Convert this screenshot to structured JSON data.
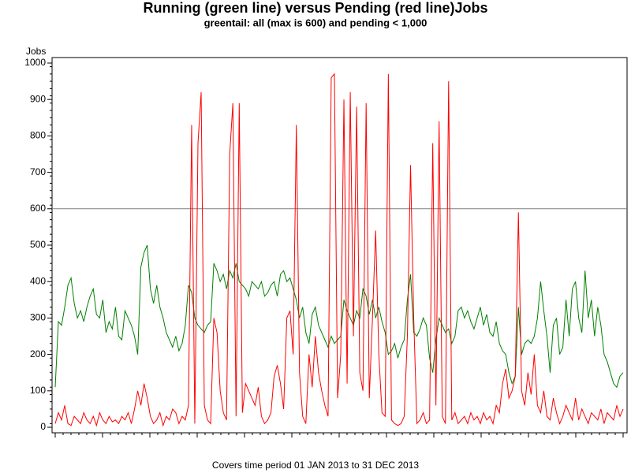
{
  "chart_data": {
    "type": "line",
    "title": "Running (green line) versus Pending (red line)Jobs",
    "subtitle": "greentail: all (max is 600) and pending < 1,000",
    "y_label": "Jobs",
    "footnote": "Covers time period 01 JAN 2013 to 31 DEC 2013",
    "ylim": [
      0,
      1000
    ],
    "yticks": [
      0,
      100,
      200,
      300,
      400,
      500,
      600,
      700,
      800,
      900,
      1000
    ],
    "reference_line": 600,
    "series": [
      {
        "color": "#008000",
        "values": [
          110,
          290,
          280,
          330,
          390,
          410,
          340,
          300,
          320,
          290,
          330,
          360,
          380,
          310,
          300,
          350,
          260,
          290,
          270,
          330,
          250,
          240,
          320,
          300,
          280,
          250,
          200,
          440,
          480,
          500,
          380,
          340,
          390,
          330,
          300,
          260,
          240,
          220,
          250,
          210,
          230,
          280,
          390,
          370,
          300,
          280,
          270,
          260,
          280,
          290,
          450,
          430,
          400,
          420,
          380,
          430,
          410,
          450,
          400,
          390,
          380,
          360,
          400,
          390,
          380,
          400,
          360,
          370,
          390,
          400,
          360,
          420,
          430,
          400,
          410,
          380,
          350,
          300,
          330,
          260,
          230,
          310,
          330,
          280,
          260,
          240,
          220,
          250,
          230,
          240,
          250,
          350,
          320,
          300,
          280,
          320,
          300,
          380,
          360,
          310,
          350,
          300,
          330,
          290,
          260,
          200,
          210,
          230,
          190,
          220,
          240,
          350,
          420,
          260,
          250,
          270,
          300,
          280,
          190,
          150,
          240,
          300,
          280,
          260,
          270,
          230,
          250,
          320,
          330,
          300,
          320,
          290,
          270,
          300,
          330,
          280,
          310,
          260,
          250,
          290,
          230,
          210,
          200,
          150,
          120,
          140,
          330,
          200,
          230,
          240,
          230,
          250,
          300,
          400,
          320,
          250,
          150,
          280,
          300,
          200,
          220,
          350,
          250,
          380,
          400,
          300,
          260,
          430,
          300,
          350,
          250,
          330,
          280,
          200,
          180,
          150,
          120,
          110,
          140,
          150
        ]
      },
      {
        "color": "#ff0000",
        "values": [
          10,
          40,
          20,
          60,
          10,
          5,
          30,
          20,
          10,
          40,
          20,
          10,
          30,
          5,
          40,
          20,
          10,
          30,
          15,
          20,
          10,
          30,
          20,
          40,
          10,
          50,
          100,
          60,
          120,
          80,
          30,
          10,
          20,
          40,
          5,
          30,
          20,
          50,
          40,
          10,
          30,
          20,
          60,
          830,
          10,
          780,
          920,
          60,
          20,
          10,
          300,
          260,
          100,
          40,
          20,
          750,
          890,
          30,
          890,
          40,
          120,
          100,
          80,
          60,
          110,
          30,
          10,
          20,
          40,
          140,
          170,
          120,
          50,
          300,
          320,
          200,
          830,
          150,
          30,
          10,
          200,
          110,
          250,
          150,
          100,
          60,
          30,
          960,
          970,
          80,
          200,
          900,
          120,
          920,
          250,
          880,
          150,
          100,
          890,
          80,
          300,
          540,
          200,
          40,
          30,
          970,
          20,
          10,
          5,
          10,
          30,
          250,
          720,
          300,
          10,
          20,
          40,
          10,
          20,
          780,
          60,
          840,
          30,
          10,
          950,
          20,
          40,
          10,
          20,
          30,
          10,
          40,
          20,
          30,
          10,
          40,
          20,
          30,
          10,
          60,
          40,
          120,
          160,
          80,
          100,
          140,
          590,
          100,
          60,
          150,
          90,
          200,
          60,
          40,
          100,
          30,
          20,
          80,
          40,
          10,
          30,
          60,
          40,
          20,
          80,
          20,
          50,
          30,
          10,
          40,
          30,
          20,
          50,
          10,
          40,
          30,
          20,
          60,
          30,
          50
        ]
      }
    ]
  }
}
